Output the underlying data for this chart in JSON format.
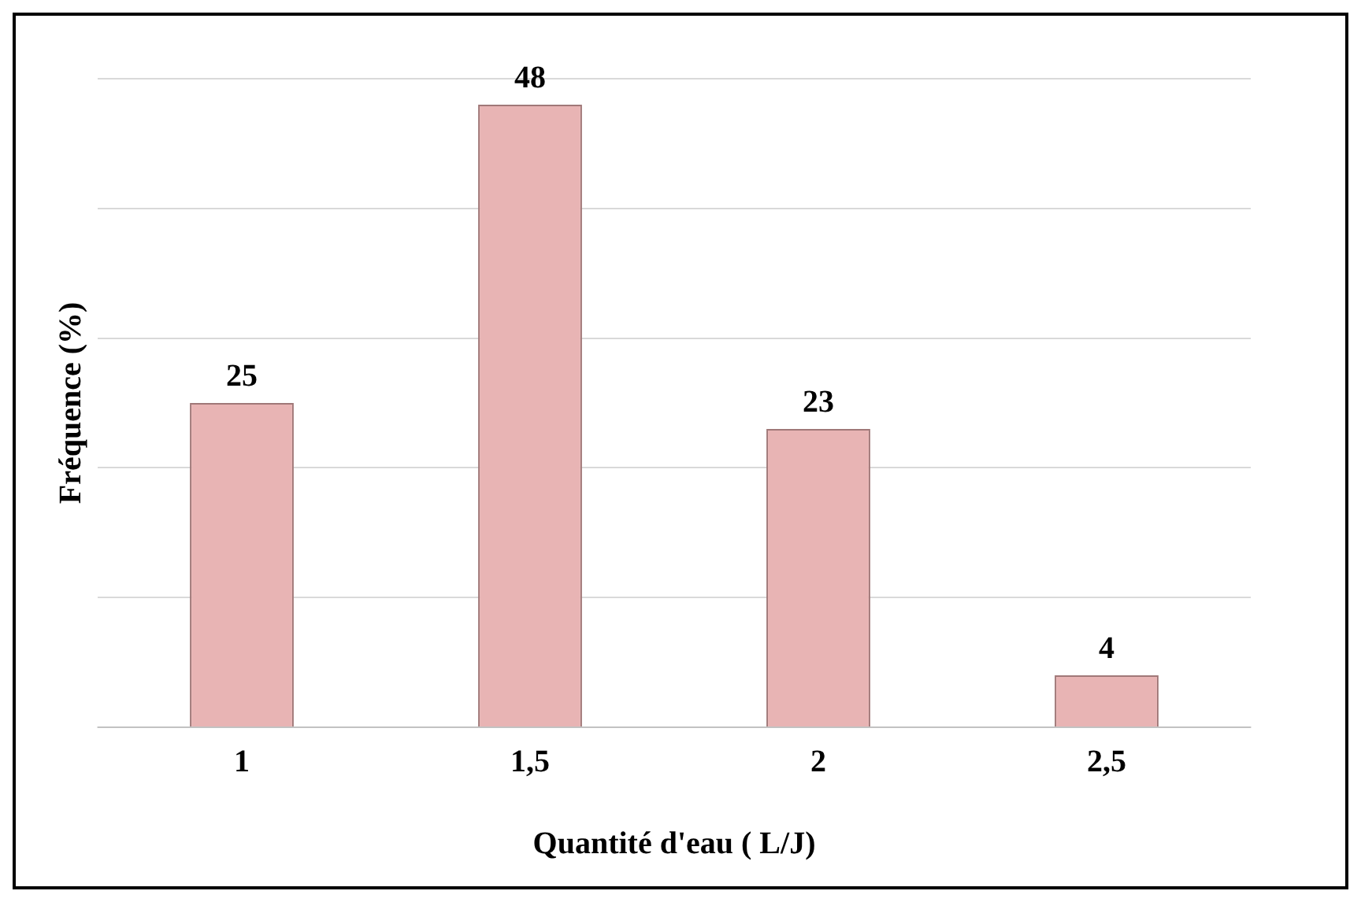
{
  "chart_data": {
    "type": "bar",
    "xlabel": "Quantité d'eau ( L/J)",
    "ylabel": "Fréquence (%)",
    "categories": [
      "1",
      "1,5",
      "2",
      "2,5"
    ],
    "values": [
      25,
      48,
      23,
      4
    ],
    "color": "#e8b4b4",
    "ylim": [
      0,
      50
    ],
    "yticks": [
      {
        "value": 0,
        "label": null
      },
      {
        "value": 10,
        "label": null
      },
      {
        "value": 20,
        "label": null
      },
      {
        "value": 30,
        "label": null
      },
      {
        "value": 40,
        "label": null
      },
      {
        "value": 50,
        "label": null
      }
    ],
    "grid": "y",
    "tick_labels": "x",
    "data_labels": true
  }
}
